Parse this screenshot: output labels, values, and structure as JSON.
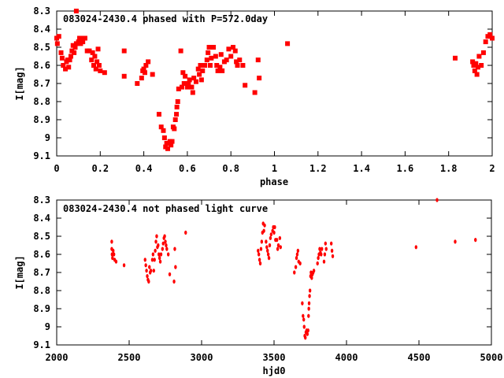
{
  "chart_data": [
    {
      "type": "scatter",
      "title": "083024-2430.4 phased with P=572.0day",
      "xlabel": "phase",
      "ylabel": "I[mag]",
      "xlim": [
        0,
        2
      ],
      "ylim": [
        8.3,
        9.1
      ],
      "y_inverted": true,
      "grid": false,
      "marker_color": "#ff0000",
      "xticks": [
        0,
        0.2,
        0.4,
        0.6,
        0.8,
        1,
        1.2,
        1.4,
        1.6,
        1.8,
        2
      ],
      "xtick_labels": [
        "0",
        "0.2",
        "0.4",
        "0.6",
        "0.8",
        "1",
        "1.2",
        "1.4",
        "1.6",
        "1.8",
        "2"
      ],
      "yticks": [
        8.3,
        8.4,
        8.5,
        8.6,
        8.7,
        8.8,
        8.9,
        9.0,
        9.1
      ],
      "ytick_labels": [
        "8.3",
        "8.4",
        "8.5",
        "8.6",
        "8.7",
        "8.8",
        "8.9",
        "9",
        "9.1"
      ],
      "points": [
        [
          0.0,
          8.45
        ],
        [
          0.003,
          8.48
        ],
        [
          0.01,
          8.44
        ],
        [
          0.02,
          8.53
        ],
        [
          0.025,
          8.56
        ],
        [
          0.03,
          8.6
        ],
        [
          0.04,
          8.62
        ],
        [
          0.045,
          8.58
        ],
        [
          0.05,
          8.57
        ],
        [
          0.055,
          8.61
        ],
        [
          0.06,
          8.57
        ],
        [
          0.065,
          8.55
        ],
        [
          0.07,
          8.52
        ],
        [
          0.075,
          8.49
        ],
        [
          0.08,
          8.53
        ],
        [
          0.085,
          8.5
        ],
        [
          0.09,
          8.3
        ],
        [
          0.09,
          8.48
        ],
        [
          0.1,
          8.47
        ],
        [
          0.105,
          8.45
        ],
        [
          0.11,
          8.48
        ],
        [
          0.115,
          8.45
        ],
        [
          0.12,
          8.47
        ],
        [
          0.13,
          8.45
        ],
        [
          0.14,
          8.52
        ],
        [
          0.15,
          8.52
        ],
        [
          0.16,
          8.57
        ],
        [
          0.165,
          8.53
        ],
        [
          0.17,
          8.6
        ],
        [
          0.175,
          8.55
        ],
        [
          0.18,
          8.62
        ],
        [
          0.185,
          8.58
        ],
        [
          0.19,
          8.51
        ],
        [
          0.195,
          8.6
        ],
        [
          0.2,
          8.63
        ],
        [
          0.22,
          8.64
        ],
        [
          0.31,
          8.52
        ],
        [
          0.31,
          8.66
        ],
        [
          0.37,
          8.7
        ],
        [
          0.39,
          8.67
        ],
        [
          0.395,
          8.63
        ],
        [
          0.4,
          8.62
        ],
        [
          0.405,
          8.64
        ],
        [
          0.41,
          8.6
        ],
        [
          0.42,
          8.58
        ],
        [
          0.44,
          8.65
        ],
        [
          0.47,
          8.87
        ],
        [
          0.48,
          8.94
        ],
        [
          0.49,
          8.96
        ],
        [
          0.495,
          9.0
        ],
        [
          0.5,
          9.05
        ],
        [
          0.505,
          9.03
        ],
        [
          0.51,
          9.06
        ],
        [
          0.515,
          9.03
        ],
        [
          0.52,
          9.02
        ],
        [
          0.525,
          9.04
        ],
        [
          0.53,
          9.02
        ],
        [
          0.535,
          8.94
        ],
        [
          0.54,
          8.95
        ],
        [
          0.545,
          8.9
        ],
        [
          0.55,
          8.87
        ],
        [
          0.552,
          8.83
        ],
        [
          0.556,
          8.8
        ],
        [
          0.56,
          8.73
        ],
        [
          0.57,
          8.52
        ],
        [
          0.575,
          8.72
        ],
        [
          0.58,
          8.64
        ],
        [
          0.585,
          8.7
        ],
        [
          0.59,
          8.66
        ],
        [
          0.6,
          8.72
        ],
        [
          0.605,
          8.7
        ],
        [
          0.61,
          8.68
        ],
        [
          0.62,
          8.72
        ],
        [
          0.625,
          8.75
        ],
        [
          0.63,
          8.67
        ],
        [
          0.64,
          8.69
        ],
        [
          0.65,
          8.62
        ],
        [
          0.655,
          8.65
        ],
        [
          0.66,
          8.6
        ],
        [
          0.665,
          8.68
        ],
        [
          0.67,
          8.63
        ],
        [
          0.68,
          8.6
        ],
        [
          0.69,
          8.57
        ],
        [
          0.695,
          8.53
        ],
        [
          0.7,
          8.5
        ],
        [
          0.705,
          8.6
        ],
        [
          0.71,
          8.56
        ],
        [
          0.72,
          8.5
        ],
        [
          0.73,
          8.55
        ],
        [
          0.735,
          8.6
        ],
        [
          0.74,
          8.63
        ],
        [
          0.75,
          8.61
        ],
        [
          0.755,
          8.54
        ],
        [
          0.76,
          8.63
        ],
        [
          0.77,
          8.58
        ],
        [
          0.78,
          8.57
        ],
        [
          0.79,
          8.51
        ],
        [
          0.8,
          8.55
        ],
        [
          0.81,
          8.5
        ],
        [
          0.82,
          8.52
        ],
        [
          0.825,
          8.58
        ],
        [
          0.83,
          8.6
        ],
        [
          0.84,
          8.57
        ],
        [
          0.855,
          8.6
        ],
        [
          0.865,
          8.71
        ],
        [
          0.91,
          8.75
        ],
        [
          0.925,
          8.57
        ],
        [
          0.93,
          8.67
        ],
        [
          1.06,
          8.48
        ],
        [
          1.83,
          8.56
        ],
        [
          1.91,
          8.58
        ],
        [
          1.915,
          8.6
        ],
        [
          1.92,
          8.63
        ],
        [
          1.925,
          8.59
        ],
        [
          1.93,
          8.65
        ],
        [
          1.935,
          8.61
        ],
        [
          1.94,
          8.55
        ],
        [
          1.95,
          8.6
        ],
        [
          1.96,
          8.53
        ],
        [
          1.97,
          8.47
        ],
        [
          1.98,
          8.44
        ],
        [
          1.99,
          8.43
        ],
        [
          2.0,
          8.45
        ]
      ]
    },
    {
      "type": "scatter",
      "title": "083024-2430.4 not phased light curve",
      "xlabel": "hjd0",
      "ylabel": "I[mag]",
      "xlim": [
        2000,
        5000
      ],
      "ylim": [
        8.3,
        9.1
      ],
      "y_inverted": true,
      "grid": false,
      "marker_color": "#ff0000",
      "xticks": [
        2000,
        2500,
        3000,
        3500,
        4000,
        4500,
        5000
      ],
      "xtick_labels": [
        "2000",
        "2500",
        "3000",
        "3500",
        "4000",
        "4500",
        "5000"
      ],
      "yticks": [
        8.3,
        8.4,
        8.5,
        8.6,
        8.7,
        8.8,
        8.9,
        9.0,
        9.1
      ],
      "ytick_labels": [
        "8.3",
        "8.4",
        "8.5",
        "8.6",
        "8.7",
        "8.8",
        "8.9",
        "9",
        "9.1"
      ],
      "points": [
        [
          2380,
          8.53
        ],
        [
          2380,
          8.57
        ],
        [
          2382,
          8.6
        ],
        [
          2385,
          8.62
        ],
        [
          2390,
          8.58
        ],
        [
          2395,
          8.6
        ],
        [
          2400,
          8.63
        ],
        [
          2410,
          8.64
        ],
        [
          2465,
          8.66
        ],
        [
          2610,
          8.63
        ],
        [
          2615,
          8.66
        ],
        [
          2620,
          8.69
        ],
        [
          2625,
          8.72
        ],
        [
          2630,
          8.74
        ],
        [
          2635,
          8.75
        ],
        [
          2640,
          8.67
        ],
        [
          2645,
          8.7
        ],
        [
          2650,
          8.69
        ],
        [
          2660,
          8.63
        ],
        [
          2665,
          8.6
        ],
        [
          2670,
          8.69
        ],
        [
          2675,
          8.63
        ],
        [
          2680,
          8.58
        ],
        [
          2685,
          8.53
        ],
        [
          2690,
          8.5
        ],
        [
          2695,
          8.56
        ],
        [
          2700,
          8.55
        ],
        [
          2705,
          8.6
        ],
        [
          2710,
          8.62
        ],
        [
          2715,
          8.64
        ],
        [
          2720,
          8.6
        ],
        [
          2730,
          8.57
        ],
        [
          2735,
          8.54
        ],
        [
          2740,
          8.51
        ],
        [
          2745,
          8.5
        ],
        [
          2750,
          8.53
        ],
        [
          2755,
          8.55
        ],
        [
          2760,
          8.57
        ],
        [
          2770,
          8.6
        ],
        [
          2780,
          8.71
        ],
        [
          2810,
          8.75
        ],
        [
          2815,
          8.57
        ],
        [
          2820,
          8.67
        ],
        [
          2890,
          8.48
        ],
        [
          3390,
          8.58
        ],
        [
          3395,
          8.6
        ],
        [
          3400,
          8.63
        ],
        [
          3405,
          8.65
        ],
        [
          3410,
          8.57
        ],
        [
          3415,
          8.53
        ],
        [
          3420,
          8.48
        ],
        [
          3425,
          8.43
        ],
        [
          3430,
          8.47
        ],
        [
          3435,
          8.44
        ],
        [
          3445,
          8.53
        ],
        [
          3450,
          8.56
        ],
        [
          3455,
          8.58
        ],
        [
          3460,
          8.6
        ],
        [
          3465,
          8.62
        ],
        [
          3470,
          8.55
        ],
        [
          3475,
          8.51
        ],
        [
          3480,
          8.49
        ],
        [
          3490,
          8.47
        ],
        [
          3495,
          8.45
        ],
        [
          3500,
          8.48
        ],
        [
          3505,
          8.45
        ],
        [
          3510,
          8.52
        ],
        [
          3520,
          8.52
        ],
        [
          3525,
          8.57
        ],
        [
          3530,
          8.55
        ],
        [
          3540,
          8.51
        ],
        [
          3545,
          8.56
        ],
        [
          3640,
          8.7
        ],
        [
          3650,
          8.67
        ],
        [
          3655,
          8.62
        ],
        [
          3660,
          8.6
        ],
        [
          3665,
          8.58
        ],
        [
          3670,
          8.64
        ],
        [
          3680,
          8.65
        ],
        [
          3695,
          8.87
        ],
        [
          3700,
          8.94
        ],
        [
          3705,
          8.96
        ],
        [
          3708,
          9.0
        ],
        [
          3712,
          9.05
        ],
        [
          3716,
          9.06
        ],
        [
          3720,
          9.03
        ],
        [
          3725,
          9.02
        ],
        [
          3730,
          9.04
        ],
        [
          3735,
          9.02
        ],
        [
          3738,
          8.94
        ],
        [
          3740,
          8.9
        ],
        [
          3742,
          8.87
        ],
        [
          3745,
          8.83
        ],
        [
          3748,
          8.8
        ],
        [
          3752,
          8.72
        ],
        [
          3755,
          8.7
        ],
        [
          3760,
          8.73
        ],
        [
          3765,
          8.71
        ],
        [
          3770,
          8.7
        ],
        [
          3775,
          8.69
        ],
        [
          3800,
          8.65
        ],
        [
          3805,
          8.62
        ],
        [
          3810,
          8.6
        ],
        [
          3815,
          8.57
        ],
        [
          3820,
          8.59
        ],
        [
          3825,
          8.6
        ],
        [
          3830,
          8.57
        ],
        [
          3845,
          8.64
        ],
        [
          3850,
          8.6
        ],
        [
          3855,
          8.54
        ],
        [
          3860,
          8.57
        ],
        [
          3895,
          8.54
        ],
        [
          3900,
          8.58
        ],
        [
          3905,
          8.61
        ],
        [
          4480,
          8.56
        ],
        [
          4625,
          8.3
        ],
        [
          4750,
          8.53
        ],
        [
          4890,
          8.52
        ]
      ]
    }
  ]
}
